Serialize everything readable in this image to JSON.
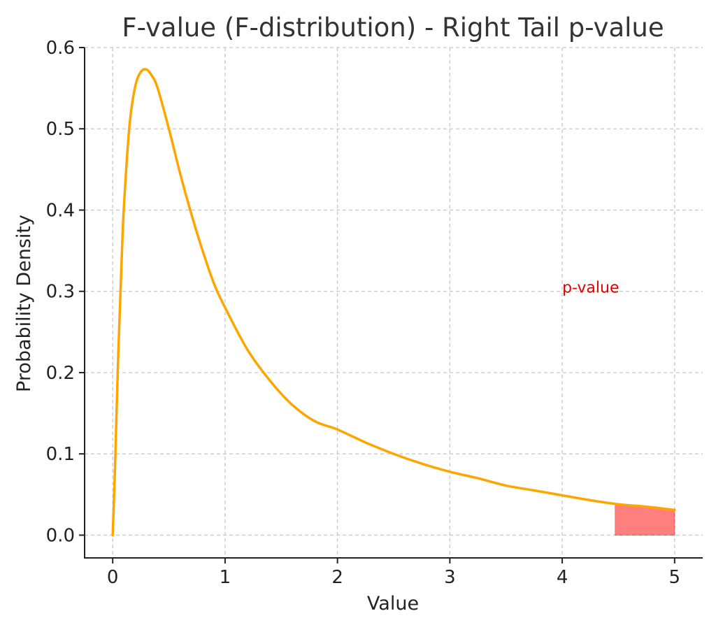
{
  "chart_data": {
    "type": "line",
    "title": "F-value (F-distribution) - Right Tail p-value",
    "xlabel": "Value",
    "ylabel": "Probability Density",
    "xlim": [
      -0.25,
      5.25
    ],
    "ylim": [
      -0.028,
      0.6
    ],
    "xticks": [
      0,
      1,
      2,
      3,
      4,
      5
    ],
    "xtick_labels": [
      "0",
      "1",
      "2",
      "3",
      "4",
      "5"
    ],
    "yticks": [
      0.0,
      0.1,
      0.2,
      0.3,
      0.4,
      0.5,
      0.6
    ],
    "ytick_labels": [
      "0.0",
      "0.1",
      "0.2",
      "0.3",
      "0.4",
      "0.5",
      "0.6"
    ],
    "grid": true,
    "series": [
      {
        "color": "#ffa500",
        "x": [
          0.0,
          0.02,
          0.05,
          0.08,
          0.1,
          0.15,
          0.2,
          0.25,
          0.3,
          0.35,
          0.4,
          0.5,
          0.6,
          0.7,
          0.8,
          0.9,
          1.0,
          1.2,
          1.4,
          1.6,
          1.8,
          2.0,
          2.25,
          2.5,
          2.75,
          3.0,
          3.25,
          3.5,
          3.75,
          4.0,
          4.25,
          4.5,
          4.75,
          5.0
        ],
        "y": [
          0.0,
          0.08,
          0.225,
          0.34,
          0.405,
          0.505,
          0.552,
          0.57,
          0.573,
          0.565,
          0.55,
          0.5,
          0.445,
          0.395,
          0.35,
          0.31,
          0.28,
          0.228,
          0.19,
          0.16,
          0.14,
          0.13,
          0.114,
          0.1,
          0.088,
          0.078,
          0.07,
          0.061,
          0.055,
          0.049,
          0.043,
          0.038,
          0.035,
          0.031
        ]
      }
    ],
    "shaded_region": {
      "label": "p-value",
      "x_start": 4.47,
      "x_end": 5.0,
      "color": "#ff0000",
      "opacity": 0.5
    },
    "annotation": {
      "text": "p-value",
      "x": 4.0,
      "y": 0.3,
      "color": "#e00000"
    }
  }
}
